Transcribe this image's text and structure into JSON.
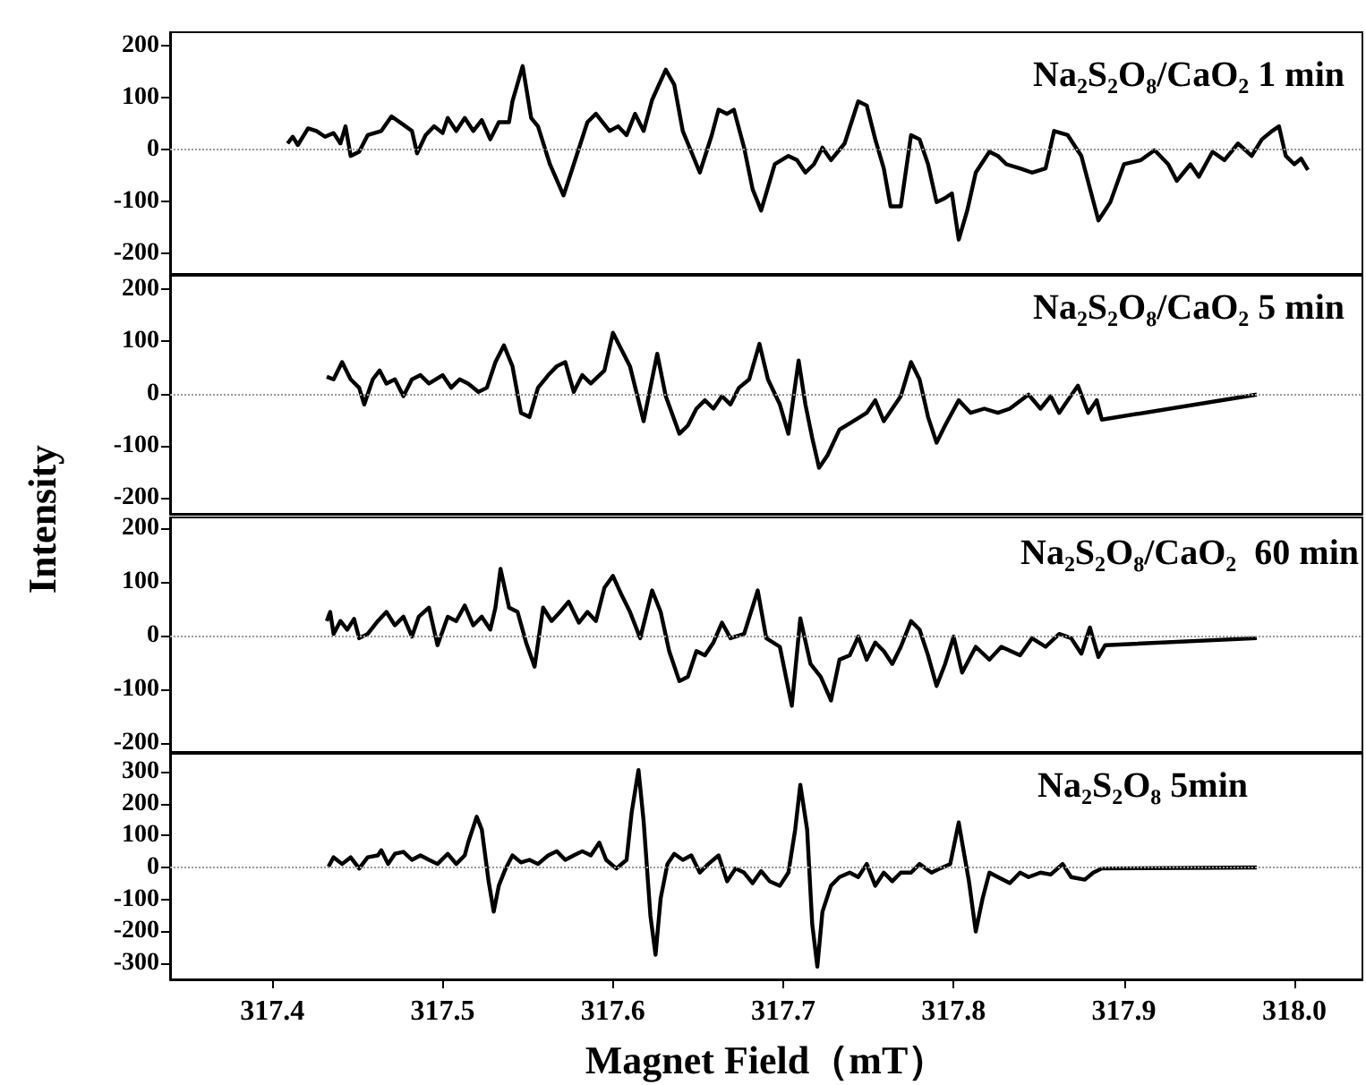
{
  "chart_data": [
    {
      "type": "line",
      "annotations": [
        "Na₂S₂O₈/CaO₂ 1 min"
      ],
      "xlim": [
        317.34,
        318.04
      ],
      "ylim": [
        -240,
        225
      ],
      "yticks": [
        -200,
        -100,
        0,
        100,
        200
      ],
      "tick_labels": "y",
      "ref_lines": [
        {
          "axis": "y",
          "value": 0,
          "color": "#999999",
          "line_style": "dotted"
        }
      ],
      "x": [
        317.409,
        317.412,
        317.415,
        317.421,
        317.426,
        317.431,
        317.436,
        317.44,
        317.443,
        317.446,
        317.451,
        317.456,
        317.464,
        317.47,
        317.477,
        317.482,
        317.485,
        317.49,
        317.495,
        317.5,
        317.503,
        317.508,
        317.513,
        317.518,
        317.523,
        317.528,
        317.533,
        317.539,
        317.541,
        317.547,
        317.552,
        317.556,
        317.563,
        317.571,
        317.577,
        317.585,
        317.59,
        317.598,
        317.603,
        317.608,
        317.613,
        317.618,
        317.623,
        317.631,
        317.636,
        317.641,
        317.651,
        317.658,
        317.662,
        317.667,
        317.671,
        317.677,
        317.682,
        317.687,
        317.695,
        317.703,
        317.708,
        317.713,
        317.718,
        317.723,
        317.728,
        317.736,
        317.744,
        317.749,
        317.754,
        317.759,
        317.763,
        317.769,
        317.775,
        317.78,
        317.785,
        317.79,
        317.795,
        317.799,
        317.803,
        317.808,
        317.813,
        317.821,
        317.826,
        317.831,
        317.839,
        317.846,
        317.854,
        317.859,
        317.867,
        317.875,
        317.885,
        317.892,
        317.9,
        317.91,
        317.918,
        317.926,
        317.931,
        317.939,
        317.944,
        317.952,
        317.959,
        317.967,
        317.975,
        317.981,
        317.987,
        317.991,
        317.995,
        318.0,
        318.004,
        318.008
      ],
      "series": [
        {
          "color": "#000000",
          "values": [
            11,
            24,
            8,
            40,
            35,
            24,
            31,
            11,
            44,
            -13,
            -5,
            27,
            35,
            63,
            47,
            35,
            -8,
            27,
            44,
            31,
            60,
            35,
            60,
            35,
            56,
            19,
            52,
            52,
            92,
            160,
            60,
            44,
            -29,
            -89,
            -29,
            52,
            68,
            35,
            44,
            27,
            68,
            35,
            95,
            153,
            124,
            35,
            -45,
            27,
            76,
            68,
            76,
            3,
            -77,
            -118,
            -29,
            -13,
            -21,
            -45,
            -29,
            3,
            -21,
            11,
            92,
            84,
            19,
            -37,
            -110,
            -110,
            27,
            19,
            -29,
            -102,
            -94,
            -85,
            -174,
            -118,
            -45,
            -5,
            -13,
            -29,
            -37,
            -45,
            -37,
            35,
            27,
            -13,
            -137,
            -102,
            -29,
            -21,
            -2,
            -29,
            -61,
            -29,
            -53,
            -5,
            -21,
            11,
            -13,
            19,
            35,
            44,
            -13,
            -29,
            -18,
            -40
          ]
        }
      ]
    },
    {
      "type": "line",
      "ylabel": "Intensity",
      "annotations": [
        "Na₂S₂O₈/CaO₂ 5 min"
      ],
      "xlim": [
        317.34,
        318.04
      ],
      "ylim": [
        -230,
        225
      ],
      "yticks": [
        -200,
        -100,
        0,
        100,
        200
      ],
      "tick_labels": "y",
      "ref_lines": [
        {
          "axis": "y",
          "value": 0,
          "color": "#999999",
          "line_style": "dotted"
        }
      ],
      "x": [
        317.432,
        317.436,
        317.441,
        317.446,
        317.451,
        317.454,
        317.459,
        317.463,
        317.467,
        317.472,
        317.477,
        317.482,
        317.487,
        317.492,
        317.5,
        317.505,
        317.51,
        317.515,
        317.521,
        317.526,
        317.531,
        317.536,
        317.541,
        317.546,
        317.551,
        317.556,
        317.562,
        317.567,
        317.572,
        317.577,
        317.582,
        317.587,
        317.595,
        317.6,
        317.605,
        317.61,
        317.618,
        317.626,
        317.631,
        317.639,
        317.644,
        317.649,
        317.654,
        317.659,
        317.664,
        317.669,
        317.674,
        317.68,
        317.686,
        317.691,
        317.698,
        317.703,
        317.709,
        317.713,
        317.717,
        317.721,
        317.726,
        317.733,
        317.741,
        317.749,
        317.754,
        317.759,
        317.764,
        317.769,
        317.775,
        317.78,
        317.785,
        317.79,
        317.795,
        317.803,
        317.81,
        317.818,
        317.826,
        317.833,
        317.844,
        317.851,
        317.857,
        317.862,
        317.867,
        317.873,
        317.879,
        317.884,
        317.887,
        317.978
      ],
      "series": [
        {
          "color": "#000000",
          "values": [
            32,
            27,
            60,
            27,
            11,
            -21,
            27,
            44,
            19,
            27,
            -5,
            27,
            35,
            19,
            35,
            11,
            27,
            19,
            3,
            11,
            60,
            92,
            52,
            -37,
            -45,
            11,
            35,
            52,
            60,
            3,
            35,
            19,
            44,
            116,
            84,
            52,
            -53,
            76,
            -5,
            -77,
            -61,
            -29,
            -13,
            -29,
            -5,
            -21,
            11,
            27,
            95,
            27,
            -21,
            -77,
            63,
            -21,
            -85,
            -142,
            -118,
            -69,
            -53,
            -37,
            -13,
            -53,
            -29,
            -5,
            60,
            27,
            -45,
            -94,
            -61,
            -13,
            -37,
            -29,
            -37,
            -29,
            -2,
            -29,
            -5,
            -37,
            -13,
            15,
            -37,
            -13,
            -50,
            -2
          ]
        }
      ]
    },
    {
      "type": "line",
      "annotations": [
        "Na₂S₂O₈/CaO₂  60 min"
      ],
      "xlim": [
        317.34,
        318.04
      ],
      "ylim": [
        -217,
        220
      ],
      "yticks": [
        -200,
        -100,
        0,
        100,
        200
      ],
      "tick_labels": "y",
      "ref_lines": [
        {
          "axis": "y",
          "value": 0,
          "color": "#999999",
          "line_style": "dotted"
        }
      ],
      "x": [
        317.432,
        317.434,
        317.436,
        317.44,
        317.444,
        317.448,
        317.451,
        317.456,
        317.462,
        317.467,
        317.472,
        317.477,
        317.482,
        317.486,
        317.492,
        317.497,
        317.503,
        317.508,
        317.513,
        317.518,
        317.523,
        317.528,
        317.531,
        317.534,
        317.539,
        317.544,
        317.549,
        317.554,
        317.559,
        317.564,
        317.569,
        317.574,
        317.58,
        317.585,
        317.59,
        317.595,
        317.6,
        317.605,
        317.61,
        317.616,
        317.623,
        317.628,
        317.633,
        317.639,
        317.644,
        317.649,
        317.654,
        317.659,
        317.664,
        317.669,
        317.677,
        317.685,
        317.69,
        317.698,
        317.705,
        317.71,
        317.716,
        317.722,
        317.728,
        317.733,
        317.739,
        317.744,
        317.749,
        317.754,
        317.759,
        317.764,
        317.769,
        317.775,
        317.78,
        317.785,
        317.79,
        317.795,
        317.8,
        317.805,
        317.813,
        317.821,
        317.828,
        317.839,
        317.846,
        317.854,
        317.862,
        317.869,
        317.875,
        317.88,
        317.885,
        317.889,
        317.978
      ],
      "series": [
        {
          "color": "#000000",
          "values": [
            27,
            44,
            3,
            27,
            11,
            31,
            -5,
            3,
            27,
            44,
            19,
            35,
            -2,
            35,
            52,
            -18,
            35,
            27,
            56,
            19,
            35,
            11,
            52,
            124,
            52,
            44,
            -13,
            -58,
            52,
            27,
            44,
            63,
            24,
            44,
            27,
            89,
            111,
            76,
            44,
            -5,
            84,
            44,
            -29,
            -85,
            -77,
            -29,
            -37,
            -13,
            24,
            -5,
            3,
            84,
            -5,
            -21,
            -131,
            32,
            -53,
            -77,
            -121,
            -45,
            -37,
            -2,
            -45,
            -13,
            -29,
            -53,
            -21,
            27,
            11,
            -37,
            -94,
            -53,
            -2,
            -69,
            -21,
            -45,
            -21,
            -37,
            -5,
            -21,
            3,
            -5,
            -34,
            15,
            -40,
            -18,
            -5
          ]
        }
      ]
    },
    {
      "type": "line",
      "xlabel": "Magnet Field（mT）",
      "annotations": [
        "Na₂S₂O₈ 5min"
      ],
      "xlim": [
        317.34,
        318.04
      ],
      "xticks": [
        317.4,
        317.5,
        317.6,
        317.7,
        317.8,
        317.9,
        {
          "value": 318,
          "label": "318.0"
        }
      ],
      "ylim": [
        -350,
        356
      ],
      "yticks": [
        -300,
        -200,
        -100,
        0,
        100,
        200,
        300
      ],
      "ref_lines": [
        {
          "axis": "y",
          "value": 0,
          "color": "#999999",
          "line_style": "dotted"
        }
      ],
      "x": [
        317.433,
        317.436,
        317.441,
        317.446,
        317.451,
        317.456,
        317.462,
        317.464,
        317.468,
        317.472,
        317.477,
        317.482,
        317.487,
        317.492,
        317.497,
        317.503,
        317.508,
        317.513,
        317.515,
        317.52,
        317.523,
        317.527,
        317.53,
        317.533,
        317.537,
        317.541,
        317.546,
        317.551,
        317.556,
        317.562,
        317.567,
        317.572,
        317.577,
        317.582,
        317.587,
        317.592,
        317.596,
        317.602,
        317.608,
        317.611,
        317.615,
        317.618,
        317.622,
        317.625,
        317.628,
        317.632,
        317.636,
        317.641,
        317.646,
        317.651,
        317.656,
        317.662,
        317.667,
        317.672,
        317.677,
        317.682,
        317.687,
        317.692,
        317.698,
        317.703,
        317.707,
        317.71,
        317.714,
        317.717,
        317.72,
        317.723,
        317.728,
        317.733,
        317.739,
        317.744,
        317.749,
        317.754,
        317.759,
        317.764,
        317.769,
        317.775,
        317.78,
        317.787,
        317.792,
        317.798,
        317.803,
        317.805,
        317.809,
        317.813,
        317.817,
        317.821,
        317.826,
        317.833,
        317.839,
        317.844,
        317.851,
        317.857,
        317.864,
        317.869,
        317.877,
        317.882,
        317.887,
        317.978
      ],
      "series": [
        {
          "color": "#000000",
          "values": [
            3,
            32,
            11,
            32,
            -3,
            32,
            38,
            54,
            11,
            43,
            49,
            24,
            38,
            24,
            11,
            43,
            11,
            38,
            78,
            159,
            119,
            -43,
            -138,
            -57,
            -3,
            38,
            16,
            24,
            11,
            38,
            51,
            24,
            38,
            51,
            38,
            78,
            24,
            -3,
            24,
            173,
            305,
            146,
            -151,
            -273,
            -97,
            11,
            43,
            24,
            38,
            -16,
            11,
            38,
            -43,
            -3,
            -16,
            -49,
            -11,
            -43,
            -57,
            -16,
            119,
            259,
            119,
            -178,
            -310,
            -138,
            -57,
            -30,
            -16,
            -30,
            11,
            -57,
            -16,
            -43,
            -16,
            -16,
            11,
            -16,
            -3,
            11,
            141,
            78,
            -43,
            -200,
            -97,
            -16,
            -30,
            -49,
            -16,
            -30,
            -16,
            -22,
            11,
            -30,
            -38,
            -16,
            -3,
            0
          ]
        }
      ]
    }
  ]
}
